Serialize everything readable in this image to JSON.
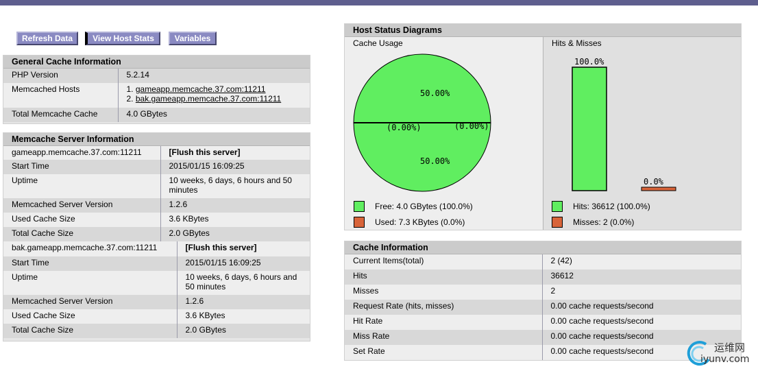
{
  "toolbar": {
    "refresh": "Refresh Data",
    "host_stats": "View Host Stats",
    "variables": "Variables"
  },
  "general": {
    "title": "General Cache Information",
    "rows": [
      {
        "label": "PHP Version",
        "value": "5.2.14"
      },
      {
        "label": "Memcached Hosts",
        "hosts": [
          "1. ",
          "2. "
        ],
        "host_links": [
          "gameapp.memcache.37.com:11211",
          "bak.gameapp.memcache.37.com:11211"
        ]
      },
      {
        "label": "Total Memcache Cache",
        "value": "4.0 GBytes"
      }
    ]
  },
  "server_info": {
    "title": "Memcache Server Information",
    "servers": [
      {
        "host": "gameapp.memcache.37.com:11211",
        "flush": "[Flush this server]",
        "rows": [
          {
            "label": "Start Time",
            "value": "2015/01/15 16:09:25"
          },
          {
            "label": "Uptime",
            "value": "10 weeks, 6 days, 6 hours and 50 minutes"
          },
          {
            "label": "Memcached Server Version",
            "value": "1.2.6"
          },
          {
            "label": "Used Cache Size",
            "value": "3.6 KBytes"
          },
          {
            "label": "Total Cache Size",
            "value": "2.0 GBytes"
          }
        ]
      },
      {
        "host": "bak.gameapp.memcache.37.com:11211",
        "flush": "[Flush this server]",
        "rows": [
          {
            "label": "Start Time",
            "value": "2015/01/15 16:09:25"
          },
          {
            "label": "Uptime",
            "value": "10 weeks, 6 days, 6 hours and 50 minutes"
          },
          {
            "label": "Memcached Server Version",
            "value": "1.2.6"
          },
          {
            "label": "Used Cache Size",
            "value": "3.6 KBytes"
          },
          {
            "label": "Total Cache Size",
            "value": "2.0 GBytes"
          }
        ]
      }
    ]
  },
  "diagrams": {
    "title": "Host Status Diagrams",
    "usage_title": "Cache Usage",
    "hits_title": "Hits & Misses",
    "pie_labels": {
      "top": "50.00%",
      "bottom": "50.00%",
      "left_zero": "(0.00%)",
      "right_zero": "(0.00%)"
    },
    "bar_labels": {
      "hits": "100.0%",
      "misses": "0.0%"
    },
    "legend": {
      "free": "Free: 4.0 GBytes (100.0%)",
      "used": "Used: 7.3 KBytes (0.0%)",
      "hits": "Hits: 36612 (100.0%)",
      "misses": "Misses: 2 (0.0%)"
    },
    "colors": {
      "green": "#60ee60",
      "orange": "#d8643a"
    }
  },
  "chart_data": [
    {
      "type": "pie",
      "title": "Cache Usage",
      "categories": [
        "Free",
        "Used"
      ],
      "values": [
        4.0,
        7.3e-06
      ],
      "units": "GBytes",
      "display_labels": [
        "50.00%",
        "50.00%",
        "(0.00%)",
        "(0.00%)"
      ]
    },
    {
      "type": "bar",
      "title": "Hits & Misses",
      "categories": [
        "Hits",
        "Misses"
      ],
      "values": [
        36612,
        2
      ],
      "percent_labels": [
        "100.0%",
        "0.0%"
      ]
    }
  ],
  "cache_info": {
    "title": "Cache Information",
    "rows": [
      {
        "label": "Current Items(total)",
        "value": "2 (42)"
      },
      {
        "label": "Hits",
        "value": "36612"
      },
      {
        "label": "Misses",
        "value": "2"
      },
      {
        "label": "Request Rate (hits, misses)",
        "value": "0.00 cache requests/second"
      },
      {
        "label": "Hit Rate",
        "value": "0.00 cache requests/second"
      },
      {
        "label": "Miss Rate",
        "value": "0.00 cache requests/second"
      },
      {
        "label": "Set Rate",
        "value": "0.00 cache requests/second"
      }
    ]
  },
  "watermark": {
    "cn": "运维网",
    "domain": "iyunv.com"
  }
}
